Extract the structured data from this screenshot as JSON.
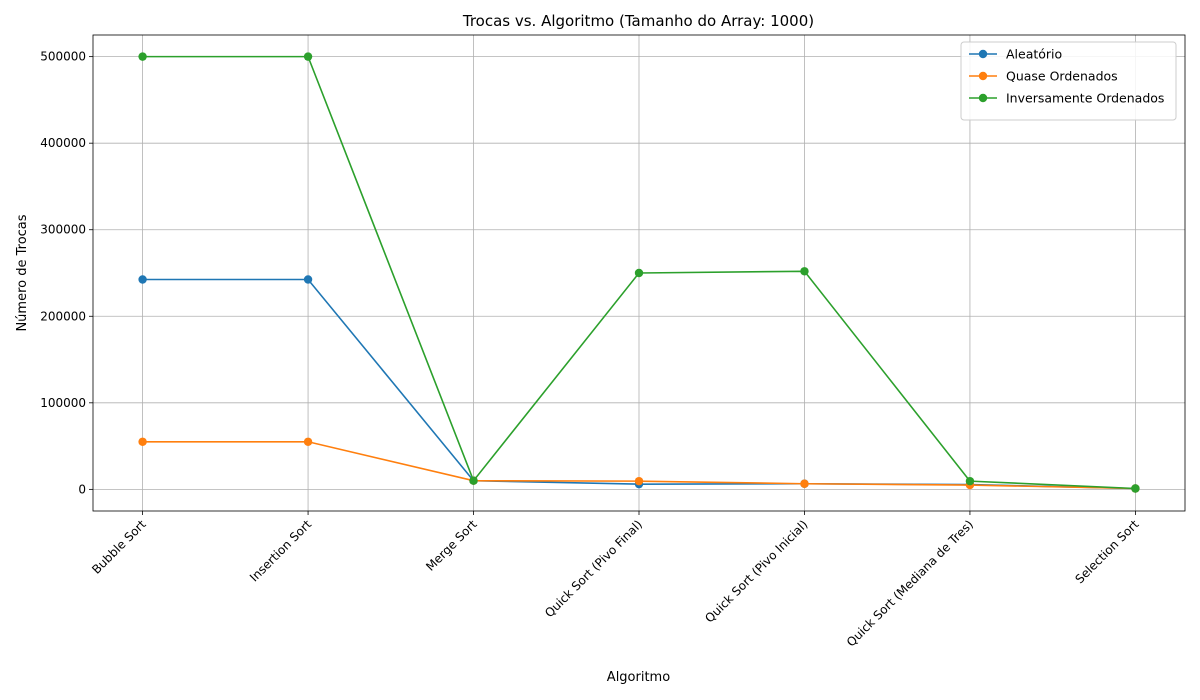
{
  "chart_data": {
    "type": "line",
    "title": "Trocas vs. Algoritmo (Tamanho do Array: 1000)",
    "xlabel": "Algoritmo",
    "ylabel": "Número de Trocas",
    "categories": [
      "Bubble Sort",
      "Insertion Sort",
      "Merge Sort",
      "Quick Sort (Pivo Final)",
      "Quick Sort (Pivo Inicial)",
      "Quick Sort (Mediana de Tres)",
      "Selection Sort"
    ],
    "series": [
      {
        "name": "Aleatório",
        "color": "#1f77b4",
        "values": [
          242500,
          242500,
          10000,
          6000,
          6500,
          5500,
          1000
        ]
      },
      {
        "name": "Quase Ordenados",
        "color": "#ff7f0e",
        "values": [
          55000,
          55000,
          10000,
          9500,
          6500,
          5000,
          1000
        ]
      },
      {
        "name": "Inversamente Ordenados",
        "color": "#2ca02c",
        "values": [
          500000,
          500000,
          10000,
          250000,
          252000,
          9500,
          1000
        ]
      }
    ],
    "ylim": [
      -25000,
      525000
    ],
    "yticks": [
      0,
      100000,
      200000,
      300000,
      400000,
      500000
    ],
    "ytick_labels": [
      "0",
      "100000",
      "200000",
      "300000",
      "400000",
      "500000"
    ],
    "grid": true,
    "legend_position": "top-right",
    "marker": "circle"
  }
}
